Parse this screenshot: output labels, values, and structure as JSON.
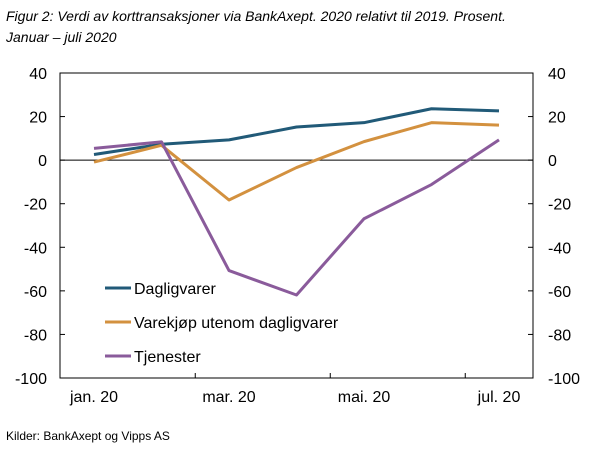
{
  "chart_data": {
    "type": "line",
    "title": "Figur 2: Verdi av korttransaksjoner via BankAxept. 2020 relativt til 2019. Prosent.",
    "subtitle": "Januar – juli 2020",
    "source": "Kilder: BankAxept og Vipps AS",
    "xlabel": "",
    "ylabel": "",
    "x": [
      "jan. 20",
      "feb. 20",
      "mar. 20",
      "apr. 20",
      "mai. 20",
      "jun. 20",
      "jul. 20"
    ],
    "x_tick_labels": [
      "jan. 20",
      "mar. 20",
      "mai. 20",
      "jul. 20"
    ],
    "y_ticks": [
      40,
      20,
      0,
      -20,
      -40,
      -60,
      -80,
      -100
    ],
    "ylim": [
      -100,
      40
    ],
    "grid": false,
    "legend_position": "bottom-left",
    "series": [
      {
        "name": "Dagligvarer",
        "color": "#215a78",
        "values": [
          2.6,
          7.3,
          9.3,
          15.2,
          17.2,
          23.6,
          22.6
        ]
      },
      {
        "name": "Varekjøp utenom dagligvarer",
        "color": "#d3913f",
        "values": [
          -0.9,
          6.8,
          -18.3,
          -3.4,
          8.5,
          17.2,
          16.1
        ]
      },
      {
        "name": "Tjenester",
        "color": "#8a5b9b",
        "values": [
          5.4,
          8.4,
          -50.7,
          -61.9,
          -26.9,
          -11.2,
          9.3
        ]
      }
    ]
  }
}
